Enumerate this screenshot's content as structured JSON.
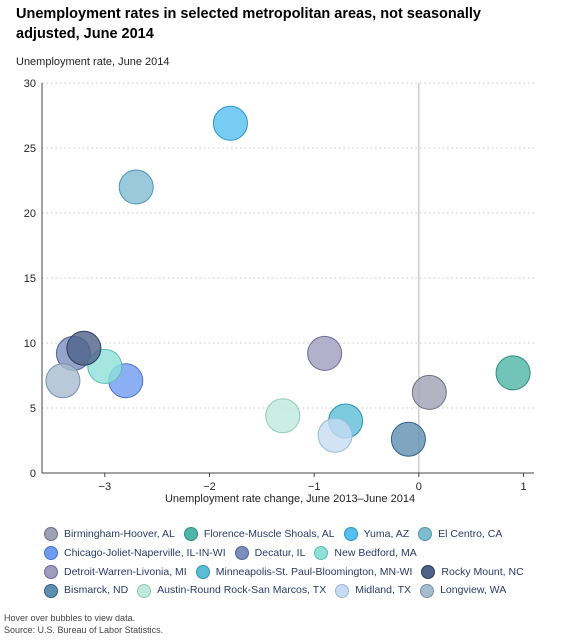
{
  "chart_data": {
    "type": "scatter",
    "title": "Unemployment rates in selected metropolitan areas, not seasonally adjusted, June 2014",
    "ylabel": "Unemployment rate, June 2014",
    "xlabel": "Unemployment rate change, June 2013–June 2014",
    "xlim": [
      -3.6,
      1.1
    ],
    "ylim": [
      0,
      30
    ],
    "xticks": [
      -3,
      -2,
      -1,
      0,
      1
    ],
    "yticks": [
      0,
      5,
      10,
      15,
      20,
      25,
      30
    ],
    "grid": "horizontal-dotted",
    "legend_position": "bottom",
    "series": [
      {
        "name": "Birmingham-Hoover, AL",
        "x": 0.1,
        "y": 6.2,
        "color": "#a0a0b4",
        "stroke": "#6f6f86"
      },
      {
        "name": "Florence-Muscle Shoals, AL",
        "x": 0.9,
        "y": 7.7,
        "color": "#4fb5a8",
        "stroke": "#2f8c80"
      },
      {
        "name": "Yuma, AZ",
        "x": -1.8,
        "y": 26.9,
        "color": "#55bff0",
        "stroke": "#2a95c8"
      },
      {
        "name": "El Centro, CA",
        "x": -2.7,
        "y": 22.0,
        "color": "#7fbcd2",
        "stroke": "#4e95ae"
      },
      {
        "name": "Chicago-Joliet-Naperville, IL-IN-WI",
        "x": -2.8,
        "y": 7.1,
        "color": "#6f9bf0",
        "stroke": "#4a73cf"
      },
      {
        "name": "Decatur, IL",
        "x": -3.3,
        "y": 9.2,
        "color": "#7a8dbd",
        "stroke": "#4f6499"
      },
      {
        "name": "New Bedford, MA",
        "x": -3.0,
        "y": 8.2,
        "color": "#8fe0d8",
        "stroke": "#5cbdb2"
      },
      {
        "name": "Detroit-Warren-Livonia, MI",
        "x": -0.9,
        "y": 9.2,
        "color": "#a09cbe",
        "stroke": "#6e6a96"
      },
      {
        "name": "Minneapolis-St. Paul-Bloomington, MN-WI",
        "x": -0.7,
        "y": 4.0,
        "color": "#5bbed6",
        "stroke": "#2f93ad"
      },
      {
        "name": "Rocky Mount, NC",
        "x": -3.2,
        "y": 9.6,
        "color": "#4e6288",
        "stroke": "#2d3d60"
      },
      {
        "name": "Bismarck, ND",
        "x": -0.1,
        "y": 2.6,
        "color": "#5f8fb0",
        "stroke": "#345f80"
      },
      {
        "name": "Austin-Round Rock-San Marcos, TX",
        "x": -1.3,
        "y": 4.4,
        "color": "#bfe9dc",
        "stroke": "#8fcab7"
      },
      {
        "name": "Midland, TX",
        "x": -0.8,
        "y": 2.9,
        "color": "#c6dcf2",
        "stroke": "#9ab8d8"
      },
      {
        "name": "Longview, WA",
        "x": -3.4,
        "y": 7.1,
        "color": "#a8bccf",
        "stroke": "#7990a8"
      }
    ]
  },
  "notes": {
    "hover": "Hover over bubbles to view data.",
    "source": "Source: U.S. Bureau of Labor Statistics."
  }
}
